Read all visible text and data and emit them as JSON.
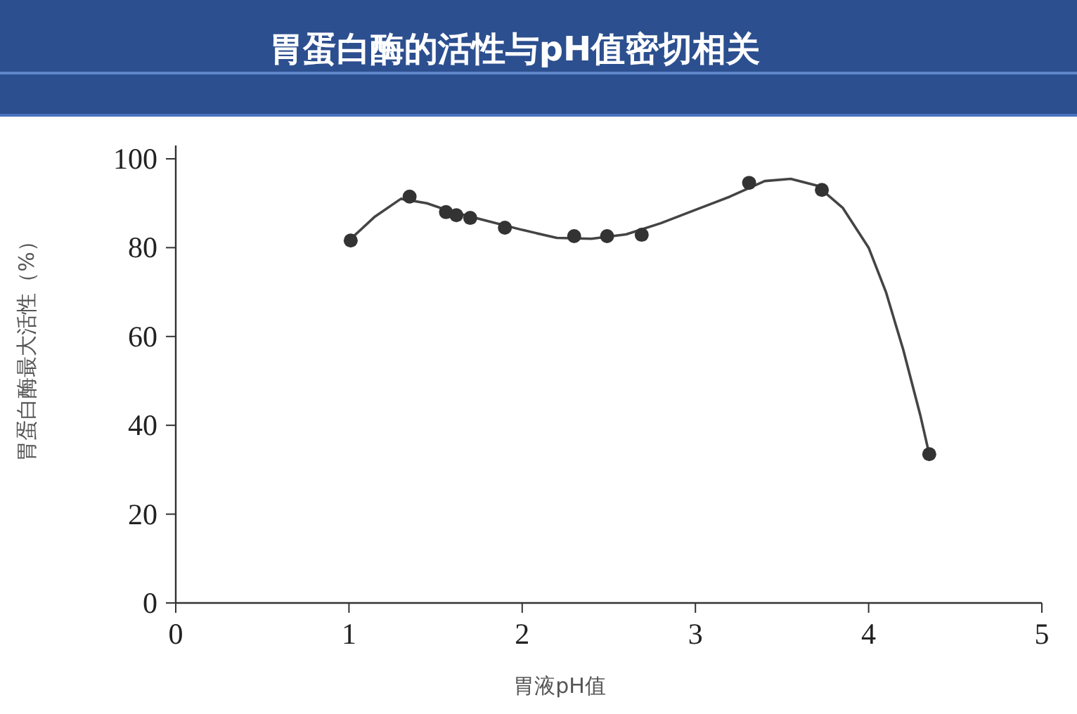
{
  "chart_data": {
    "type": "scatter",
    "title": "胃蛋白酶的活性与pH值密切相关",
    "xlabel": "胃液pH值",
    "ylabel": "胃蛋白酶最大活性（%）",
    "xlim": [
      0,
      5
    ],
    "xticks": [
      0,
      1,
      2,
      3,
      4,
      5
    ],
    "ylim": [
      0,
      103
    ],
    "yticks": [
      0,
      20,
      40,
      60,
      80,
      100
    ],
    "grid": false,
    "series": [
      {
        "type": "line",
        "color": "#444444",
        "marker": "none",
        "line_style": "solid",
        "x": [
          1.0,
          1.15,
          1.3,
          1.45,
          1.6,
          1.8,
          2.0,
          2.2,
          2.4,
          2.6,
          2.8,
          3.0,
          3.2,
          3.4,
          3.55,
          3.7,
          3.85,
          4.0,
          4.1,
          4.2,
          4.3,
          4.35
        ],
        "values": [
          81.6,
          87,
          91,
          90,
          88,
          86,
          84,
          82.2,
          82,
          83,
          85.5,
          88.5,
          91.5,
          95,
          95.5,
          94,
          89,
          80,
          70,
          57,
          42,
          33.5
        ]
      },
      {
        "color": "#333333",
        "marker": "circle",
        "x": [
          1.01,
          1.35,
          1.56,
          1.62,
          1.7,
          1.9,
          2.3,
          2.49,
          2.69,
          3.31,
          3.73,
          4.35
        ],
        "values": [
          81.6,
          91.5,
          88,
          87.3,
          86.7,
          84.5,
          82.6,
          82.6,
          82.9,
          94.6,
          93,
          33.5
        ]
      }
    ]
  }
}
